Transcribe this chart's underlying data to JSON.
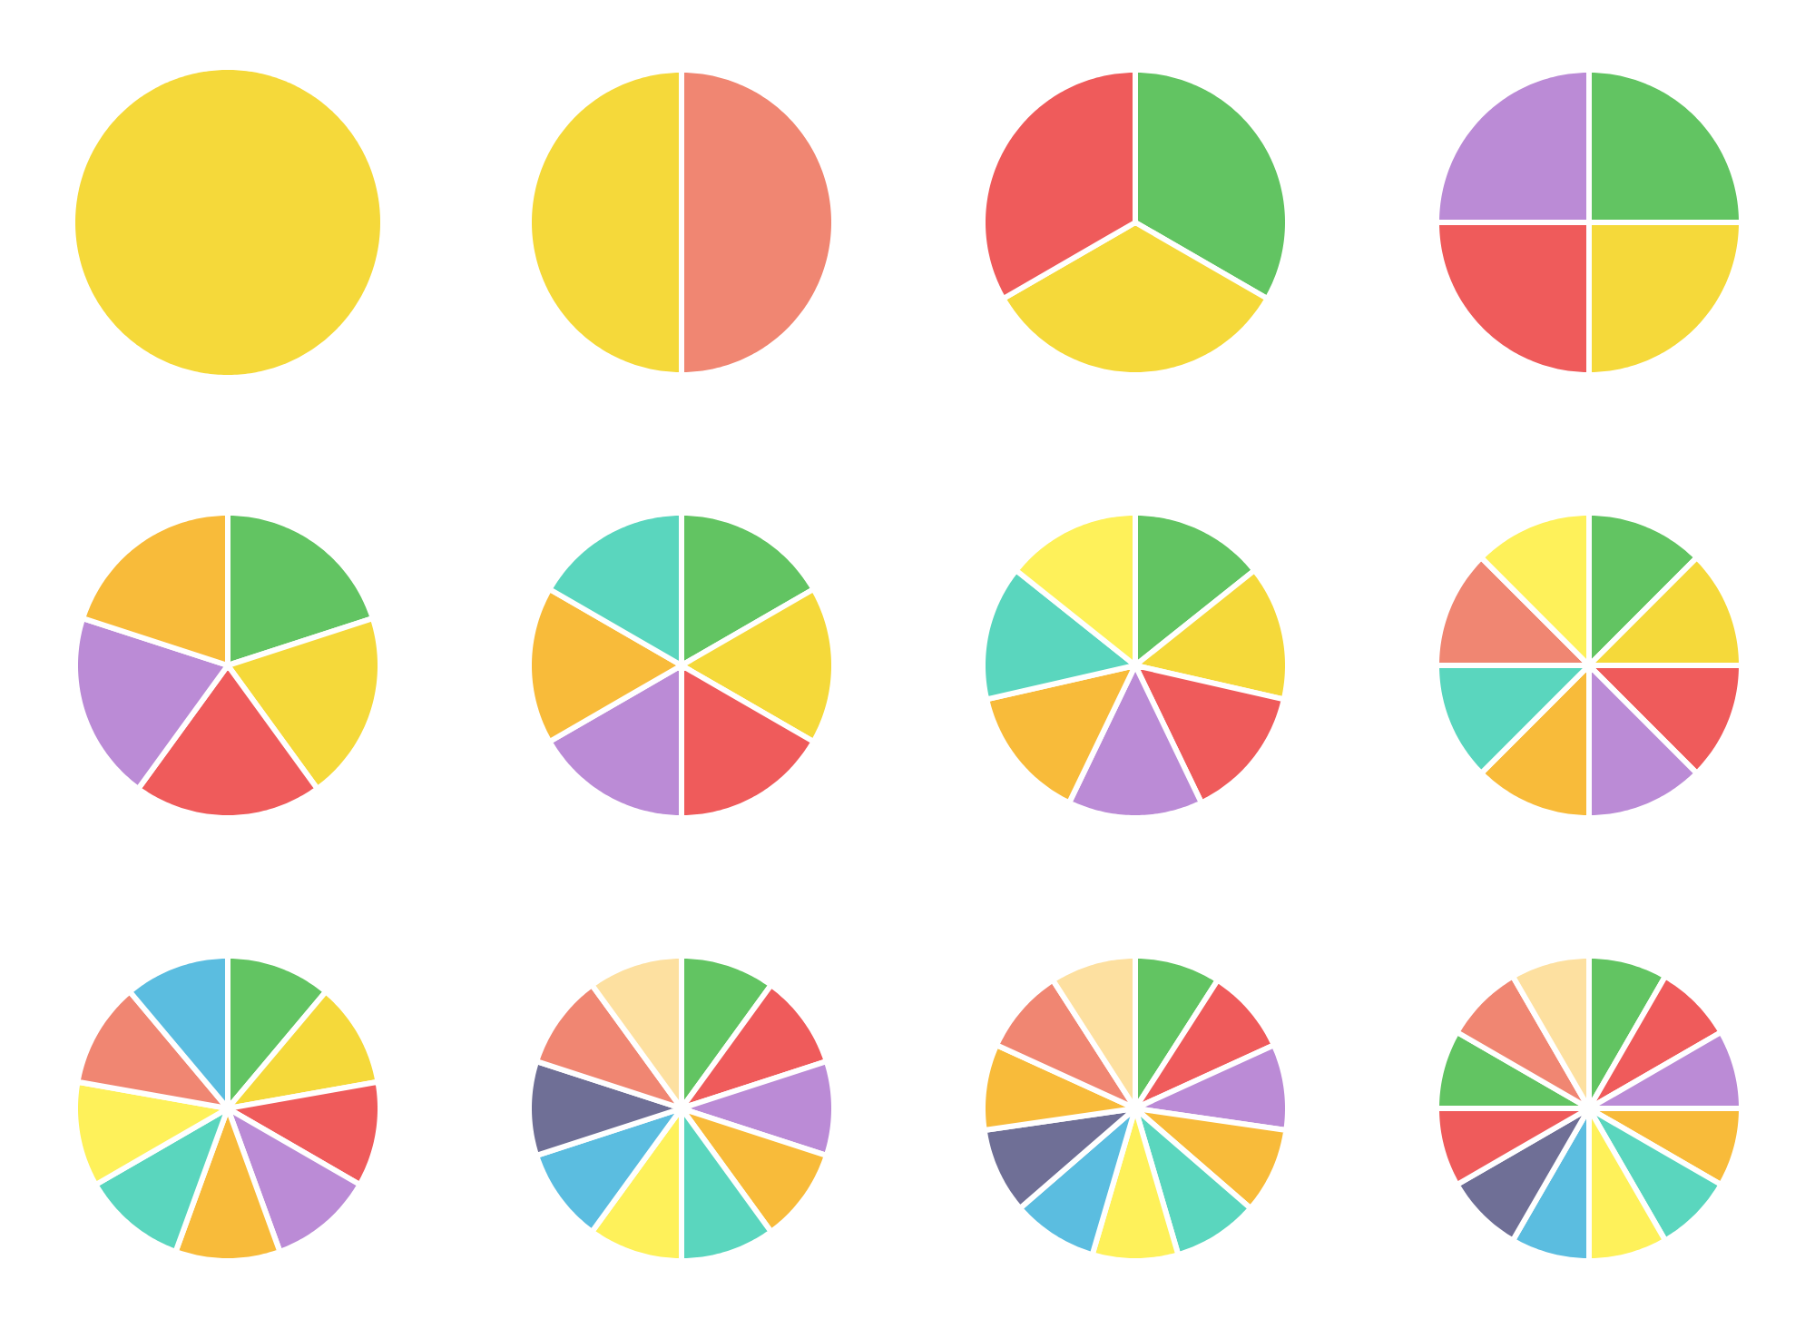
{
  "chart_data": [
    {
      "type": "pie",
      "categories": [
        null
      ],
      "values": [
        100
      ],
      "colors": [
        "#f5d93a"
      ]
    },
    {
      "type": "pie",
      "categories": [
        null,
        null
      ],
      "values": [
        50,
        50
      ],
      "colors": [
        "#f08672",
        "#f5d93a"
      ]
    },
    {
      "type": "pie",
      "categories": [
        null,
        null,
        null
      ],
      "values": [
        33.33,
        33.33,
        33.33
      ],
      "colors": [
        "#62c462",
        "#f5d93a",
        "#ef5b5b"
      ]
    },
    {
      "type": "pie",
      "categories": [
        null,
        null,
        null,
        null
      ],
      "values": [
        25,
        25,
        25,
        25
      ],
      "colors": [
        "#62c462",
        "#f5d93a",
        "#ef5b5b",
        "#bb8bd6"
      ]
    },
    {
      "type": "pie",
      "categories": [
        null,
        null,
        null,
        null,
        null
      ],
      "values": [
        20,
        20,
        20,
        20,
        20
      ],
      "colors": [
        "#62c462",
        "#f5d93a",
        "#ef5b5b",
        "#bb8bd6",
        "#f8bb3a"
      ]
    },
    {
      "type": "pie",
      "categories": [
        null,
        null,
        null,
        null,
        null,
        null
      ],
      "values": [
        16.67,
        16.67,
        16.67,
        16.67,
        16.67,
        16.67
      ],
      "colors": [
        "#62c462",
        "#f5d93a",
        "#ef5b5b",
        "#bb8bd6",
        "#f8bb3a",
        "#5ad6be"
      ]
    },
    {
      "type": "pie",
      "categories": [
        null,
        null,
        null,
        null,
        null,
        null,
        null
      ],
      "values": [
        14.29,
        14.29,
        14.29,
        14.29,
        14.29,
        14.29,
        14.29
      ],
      "colors": [
        "#62c462",
        "#f5d93a",
        "#ef5b5b",
        "#bb8bd6",
        "#f8bb3a",
        "#5ad6be",
        "#fef15a"
      ]
    },
    {
      "type": "pie",
      "categories": [
        null,
        null,
        null,
        null,
        null,
        null,
        null,
        null
      ],
      "values": [
        12.5,
        12.5,
        12.5,
        12.5,
        12.5,
        12.5,
        12.5,
        12.5
      ],
      "colors": [
        "#62c462",
        "#f5d93a",
        "#ef5b5b",
        "#bb8bd6",
        "#f8bb3a",
        "#5ad6be",
        "#f08672",
        "#fef15a"
      ]
    },
    {
      "type": "pie",
      "categories": [
        null,
        null,
        null,
        null,
        null,
        null,
        null,
        null,
        null
      ],
      "values": [
        11.11,
        11.11,
        11.11,
        11.11,
        11.11,
        11.11,
        11.11,
        11.11,
        11.11
      ],
      "colors": [
        "#62c462",
        "#f5d93a",
        "#ef5b5b",
        "#bb8bd6",
        "#f8bb3a",
        "#5ad6be",
        "#fef15a",
        "#f08672",
        "#5bbde0"
      ]
    },
    {
      "type": "pie",
      "categories": [
        null,
        null,
        null,
        null,
        null,
        null,
        null,
        null,
        null,
        null
      ],
      "values": [
        10,
        10,
        10,
        10,
        10,
        10,
        10,
        10,
        10,
        10
      ],
      "colors": [
        "#62c462",
        "#ef5b5b",
        "#bb8bd6",
        "#f8bb3a",
        "#5ad6be",
        "#fef15a",
        "#5bbde0",
        "#6f6f96",
        "#f08672",
        "#fde0a0"
      ]
    },
    {
      "type": "pie",
      "categories": [
        null,
        null,
        null,
        null,
        null,
        null,
        null,
        null,
        null,
        null,
        null
      ],
      "values": [
        9.09,
        9.09,
        9.09,
        9.09,
        9.09,
        9.09,
        9.09,
        9.09,
        9.09,
        9.09,
        9.09
      ],
      "colors": [
        "#62c462",
        "#ef5b5b",
        "#bb8bd6",
        "#f8bb3a",
        "#5ad6be",
        "#fef15a",
        "#5bbde0",
        "#6f6f96",
        "#f8bb3a",
        "#f08672",
        "#fde0a0"
      ]
    },
    {
      "type": "pie",
      "categories": [
        null,
        null,
        null,
        null,
        null,
        null,
        null,
        null,
        null,
        null,
        null,
        null
      ],
      "values": [
        8.33,
        8.33,
        8.33,
        8.33,
        8.33,
        8.33,
        8.33,
        8.33,
        8.33,
        8.33,
        8.33,
        8.33
      ],
      "colors": [
        "#62c462",
        "#ef5b5b",
        "#bb8bd6",
        "#f8bb3a",
        "#5ad6be",
        "#fef15a",
        "#5bbde0",
        "#6f6f96",
        "#ef5b5b",
        "#62c462",
        "#f08672",
        "#fde0a0"
      ]
    }
  ]
}
